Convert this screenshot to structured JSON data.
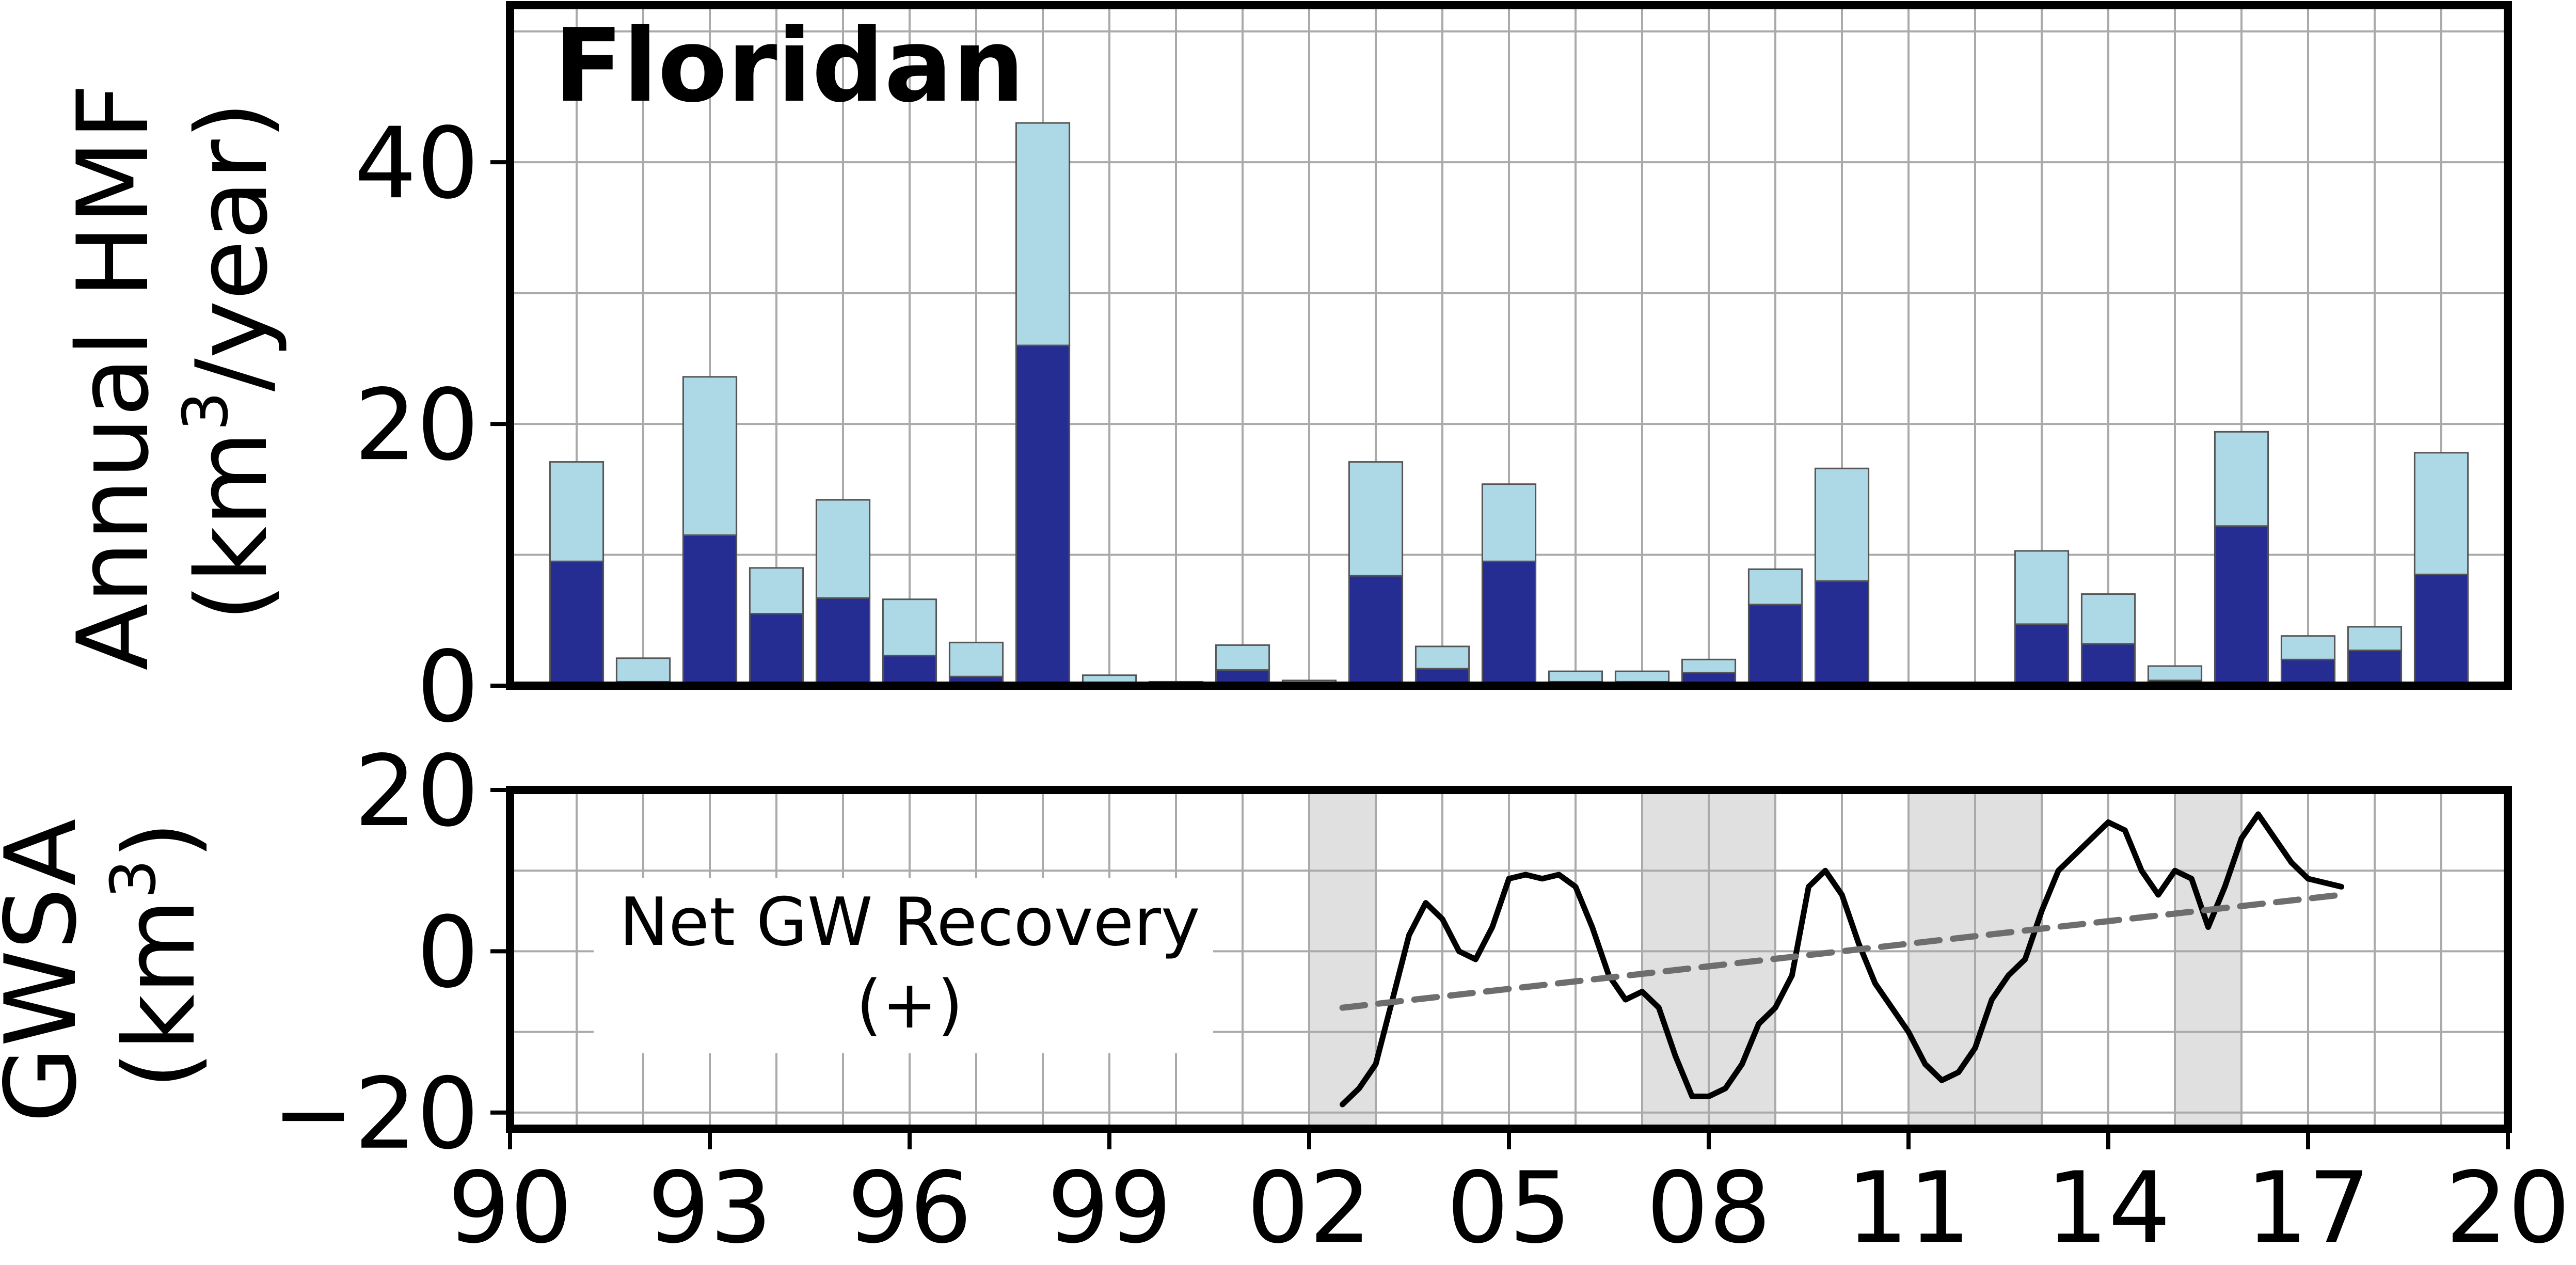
{
  "chart_data": [
    {
      "type": "bar",
      "stacked": true,
      "title": "Floridan",
      "ylabel_line1": "Annual HMF",
      "ylabel_line2_prefix": "(km",
      "ylabel_line2_sup": "3",
      "ylabel_line2_suffix": "/year)",
      "ylim": [
        0,
        52
      ],
      "yticks": [
        0,
        20,
        40
      ],
      "grid": true,
      "x": [
        1991,
        1992,
        1993,
        1994,
        1995,
        1996,
        1997,
        1998,
        1999,
        2000,
        2001,
        2002,
        2003,
        2004,
        2005,
        2006,
        2007,
        2008,
        2009,
        2010,
        2011,
        2012,
        2013,
        2014,
        2015,
        2016,
        2017,
        2018,
        2019
      ],
      "series": [
        {
          "color": "#252d92",
          "values": [
            9.5,
            0.3,
            11.5,
            5.5,
            6.7,
            2.3,
            0.7,
            26.0,
            0.1,
            0.05,
            1.2,
            0.1,
            8.4,
            1.3,
            9.5,
            0.3,
            0.3,
            1.0,
            6.2,
            8.0,
            0,
            0,
            4.7,
            3.2,
            0.4,
            12.2,
            2.0,
            2.7,
            8.5
          ]
        },
        {
          "color": "#add8e6",
          "values": [
            7.6,
            1.8,
            12.1,
            3.5,
            7.5,
            4.3,
            2.6,
            17.0,
            0.7,
            0.25,
            1.9,
            0.3,
            8.7,
            1.7,
            5.9,
            0.8,
            0.8,
            1.0,
            2.7,
            8.6,
            0,
            0,
            5.6,
            3.8,
            1.1,
            7.2,
            1.8,
            1.8,
            9.3
          ]
        }
      ]
    },
    {
      "type": "line",
      "ylabel_line1": "GWSA",
      "ylabel_line2_prefix": "(km",
      "ylabel_line2_sup": "3",
      "ylabel_line2_suffix": ")",
      "ylim": [
        -22,
        20
      ],
      "yticks": [
        -20,
        0,
        20
      ],
      "ytick_labels": [
        "−20",
        "0",
        "20"
      ],
      "xlim": [
        1990,
        2020
      ],
      "xticks": [
        1990,
        1993,
        1996,
        1999,
        2002,
        2005,
        2008,
        2011,
        2014,
        2017,
        2020
      ],
      "xtick_labels": [
        "90",
        "93",
        "96",
        "99",
        "02",
        "05",
        "08",
        "11",
        "14",
        "17",
        "20"
      ],
      "grid": true,
      "annotation_line1": "Net GW Recovery",
      "annotation_line2": "(+)",
      "shaded_periods": [
        [
          2002,
          2003
        ],
        [
          2007,
          2009
        ],
        [
          2011,
          2013
        ],
        [
          2015,
          2016
        ]
      ],
      "series": [
        {
          "color": "#000000",
          "style": "solid",
          "x": [
            2002.5,
            2002.75,
            2003.0,
            2003.25,
            2003.5,
            2003.75,
            2004.0,
            2004.25,
            2004.5,
            2004.75,
            2005.0,
            2005.25,
            2005.5,
            2005.75,
            2006.0,
            2006.25,
            2006.5,
            2006.75,
            2007.0,
            2007.25,
            2007.5,
            2007.75,
            2008.0,
            2008.25,
            2008.5,
            2008.75,
            2009.0,
            2009.25,
            2009.5,
            2009.75,
            2010.0,
            2010.25,
            2010.5,
            2010.75,
            2011.0,
            2011.25,
            2011.5,
            2011.75,
            2012.0,
            2012.25,
            2012.5,
            2012.75,
            2013.0,
            2013.25,
            2013.5,
            2013.75,
            2014.0,
            2014.25,
            2014.5,
            2014.75,
            2015.0,
            2015.25,
            2015.5,
            2015.75,
            2016.0,
            2016.25,
            2016.5,
            2016.75,
            2017.0,
            2017.25,
            2017.5
          ],
          "y": [
            -19,
            -17,
            -14,
            -6,
            2,
            6,
            4,
            0,
            -1,
            3,
            9,
            9.5,
            9,
            9.5,
            8,
            3,
            -3,
            -6,
            -5,
            -7,
            -13,
            -18,
            -18,
            -17,
            -14,
            -9,
            -7,
            -3,
            8,
            10,
            7,
            1,
            -4,
            -7,
            -10,
            -14,
            -16,
            -15,
            -12,
            -6,
            -3,
            -1,
            5,
            10,
            12,
            14,
            16,
            15,
            10,
            7,
            10,
            9,
            3,
            8,
            14,
            17,
            14,
            11,
            9,
            8.5,
            8
          ]
        },
        {
          "color": "#6e6e6e",
          "style": "dashed",
          "x": [
            2002.5,
            2017.5
          ],
          "y": [
            -7,
            7
          ]
        }
      ]
    }
  ]
}
